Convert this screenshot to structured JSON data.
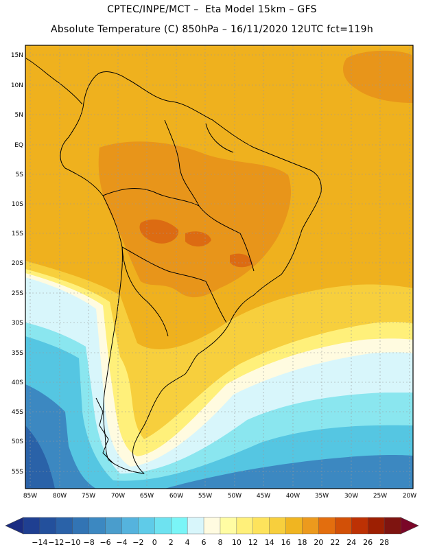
{
  "header": {
    "line1": "CPTEC/INPE/MCT –  Eta Model 15km – GFS",
    "line2": "Absolute Temperature (C) 850hPa – 16/11/2020 12UTC fct=119h"
  },
  "axes": {
    "lat_labels": [
      "15N",
      "10N",
      "5N",
      "EQ",
      "5S",
      "10S",
      "15S",
      "20S",
      "25S",
      "30S",
      "35S",
      "40S",
      "45S",
      "50S",
      "55S"
    ],
    "lon_labels": [
      "85W",
      "80W",
      "75W",
      "70W",
      "65W",
      "60W",
      "55W",
      "50W",
      "45W",
      "40W",
      "35W",
      "30W",
      "25W",
      "20W"
    ]
  },
  "colorbar": {
    "tick_labels": [
      "-14",
      "-12",
      "-10",
      "-8",
      "-6",
      "-4",
      "-2",
      "0",
      "2",
      "4",
      "6",
      "8",
      "10",
      "12",
      "14",
      "16",
      "18",
      "20",
      "22",
      "24",
      "26",
      "28"
    ],
    "colors": [
      "#1f3f91",
      "#23509c",
      "#2a62a8",
      "#3274b4",
      "#3c88c1",
      "#4a9dcc",
      "#55b3dd",
      "#5fcbe8",
      "#6ee2f0",
      "#7af5f7",
      "#d8f6fb",
      "#fffbe0",
      "#fffca3",
      "#fff07a",
      "#fde35c",
      "#f7cf3d",
      "#f0b521",
      "#ec9a1d",
      "#e36e0e",
      "#d25007",
      "#bd3104",
      "#9d1f02",
      "#7e1410"
    ],
    "arrow_left_color": "#1a2c82",
    "arrow_right_color": "#7a0628"
  },
  "colors": {
    "deep_blue": "#2a62a8",
    "cyan": "#55c6e2",
    "light_cyan": "#8ae6ef",
    "pale": "#d8f6fb",
    "cream": "#fffbe0",
    "yellow": "#fff07a",
    "gold": "#f7cf3d",
    "orange": "#efb11e",
    "dark_orange": "#e8951a",
    "red_orange": "#dc6b12"
  }
}
